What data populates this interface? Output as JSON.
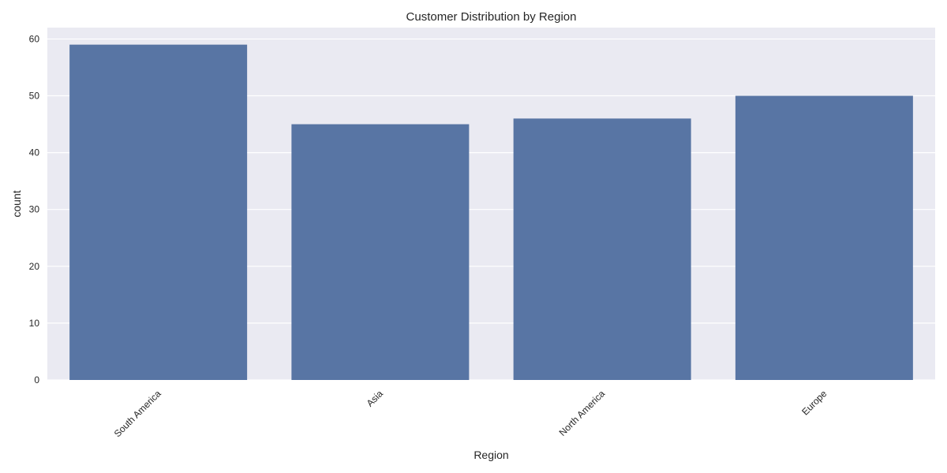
{
  "chart_data": {
    "type": "bar",
    "title": "Customer Distribution by Region",
    "xlabel": "Region",
    "ylabel": "count",
    "categories": [
      "South America",
      "Asia",
      "North America",
      "Europe"
    ],
    "values": [
      59,
      45,
      46,
      50
    ],
    "yticks": [
      0,
      10,
      20,
      30,
      40,
      50,
      60
    ],
    "ylim": [
      0,
      62
    ],
    "grid": true,
    "colors": {
      "bar": "#5875a4",
      "plot_background": "#eaeaf2",
      "grid": "#ffffff"
    }
  }
}
